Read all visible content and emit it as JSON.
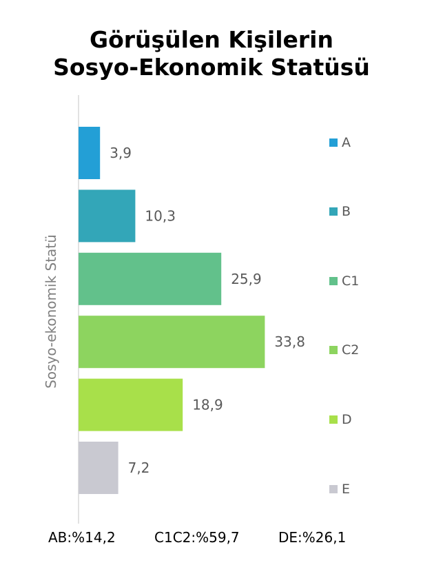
{
  "chart_data": {
    "type": "bar",
    "orientation": "horizontal",
    "title": [
      "Görüşülen Kişilerin",
      "Sosyo-Ekonomik Statüsü"
    ],
    "ylabel": "Sosyo-ekonomik Statü",
    "categories": [
      "A",
      "B",
      "C1",
      "C2",
      "D",
      "E"
    ],
    "values": [
      3.9,
      10.3,
      25.9,
      33.8,
      18.9,
      7.2
    ],
    "value_labels": [
      "3,9",
      "10,3",
      "25,9",
      "33,8",
      "18,9",
      "7,2"
    ],
    "colors": [
      "#239fd6",
      "#33a6b8",
      "#62c18b",
      "#8dd45f",
      "#a8e04a",
      "#c9c9d1"
    ],
    "legend": [
      "A",
      "B",
      "C1",
      "C2",
      "D",
      "E"
    ],
    "legend_position": "right",
    "xlim": [
      0,
      40
    ],
    "grid": false
  },
  "footer": [
    "AB:%14,2",
    "C1C2:%59,7",
    "DE:%26,1"
  ]
}
